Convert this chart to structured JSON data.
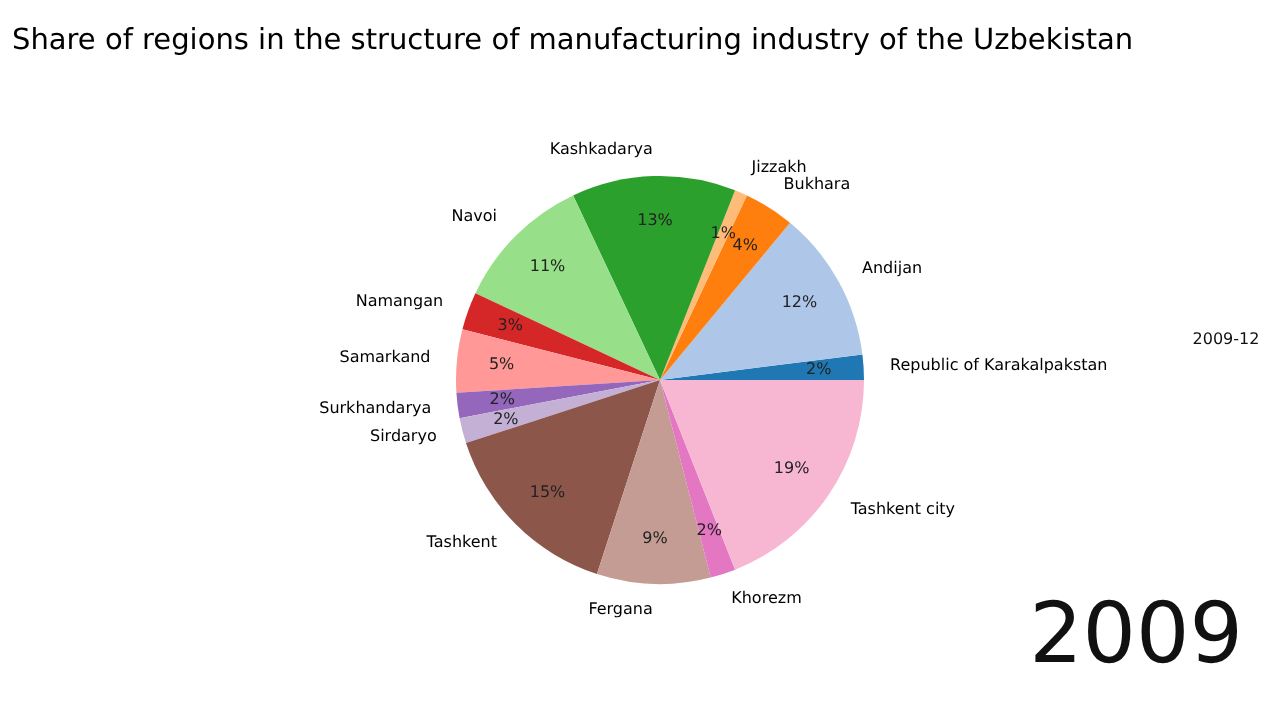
{
  "chart_data": {
    "type": "pie",
    "title": "Share of regions in the structure of manufacturing industry of the Uzbekistan",
    "categories": [
      "Republic of Karakalpakstan",
      "Andijan",
      "Bukhara",
      "Jizzakh",
      "Kashkadarya",
      "Navoi",
      "Namangan",
      "Samarkand",
      "Surkhandarya",
      "Sirdaryo",
      "Tashkent",
      "Fergana",
      "Khorezm",
      "Tashkent city"
    ],
    "values": [
      2,
      12,
      4,
      1,
      13,
      11,
      3,
      5,
      2,
      2,
      15,
      9,
      2,
      19
    ],
    "value_labels": [
      "2%",
      "12%",
      "4%",
      "1%",
      "13%",
      "11%",
      "3%",
      "5%",
      "2%",
      "2%",
      "15%",
      "9%",
      "2%",
      "19%"
    ],
    "colors": [
      "#1f77b4",
      "#aec7e8",
      "#ff7f0e",
      "#ffbb78",
      "#2ca02c",
      "#98df8a",
      "#d62728",
      "#ff9896",
      "#9467bd",
      "#c5b0d5",
      "#8c564b",
      "#c49c94",
      "#e377c2",
      "#f7b6d2"
    ],
    "annotations": [
      "2009-12",
      "2009"
    ]
  }
}
